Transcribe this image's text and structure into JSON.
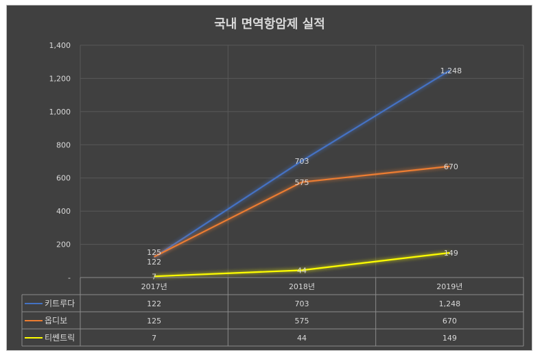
{
  "chart_data": {
    "type": "line",
    "title": "국내 면역항암제 실적",
    "categories": [
      "2017년",
      "2018년",
      "2019년"
    ],
    "ylim": [
      0,
      1400
    ],
    "yticks": [
      0,
      200,
      400,
      600,
      800,
      1000,
      1200,
      1400
    ],
    "ytick_labels": [
      "-",
      "200",
      "400",
      "600",
      "800",
      "1,000",
      "1,200",
      "1,400"
    ],
    "grid": true,
    "legend": "data-table",
    "series": [
      {
        "name": "키트루다",
        "color": "#4472c4",
        "values": [
          122,
          703,
          1248
        ],
        "labels": [
          "122",
          "703",
          "1,248"
        ]
      },
      {
        "name": "옵디보",
        "color": "#ed7d31",
        "values": [
          125,
          575,
          670
        ],
        "labels": [
          "125",
          "575",
          "670"
        ]
      },
      {
        "name": "티쎈트릭",
        "color": "#ffff00",
        "values": [
          7,
          44,
          149
        ],
        "labels": [
          "7",
          "44",
          "149"
        ]
      }
    ]
  }
}
